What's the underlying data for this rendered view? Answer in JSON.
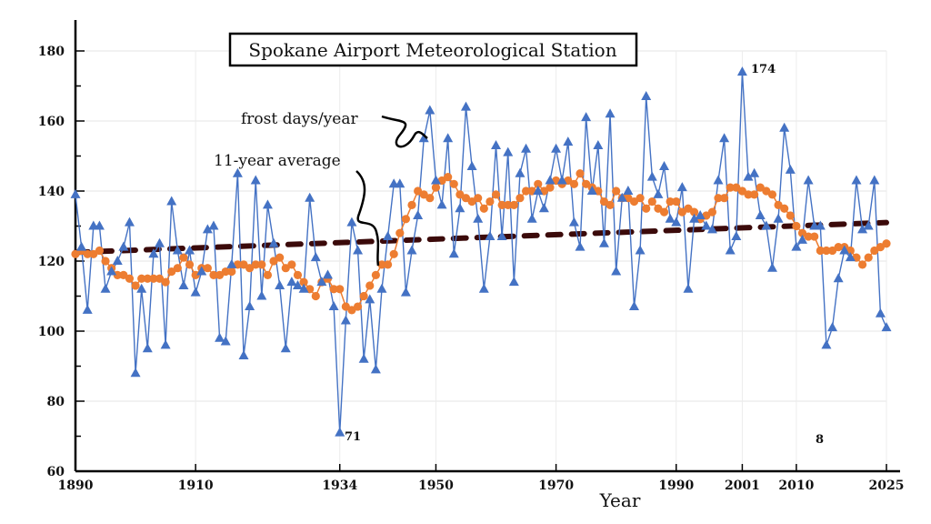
{
  "chart_data": {
    "type": "line",
    "title": "Spokane Airport Meteorological Station",
    "xlabel": "Year",
    "ylabel": "",
    "xlim": [
      1890,
      2025
    ],
    "ylim": [
      60,
      180
    ],
    "x_ticks": [
      "1890",
      "1910",
      "1934",
      "1950",
      "1970",
      "1990",
      "2001",
      "2010",
      "2025"
    ],
    "y_ticks": [
      "60",
      "80",
      "100",
      "120",
      "140",
      "160",
      "180"
    ],
    "grid": "faint",
    "x_start": 1890,
    "series": [
      {
        "name": "frost days/year",
        "color": "#4472c4",
        "marker": "triangle",
        "values": [
          139,
          124,
          106,
          130,
          130,
          112,
          117,
          120,
          124,
          131,
          88,
          112,
          95,
          122,
          125,
          96,
          137,
          123,
          113,
          123,
          111,
          117,
          129,
          130,
          98,
          97,
          119,
          145,
          93,
          107,
          143,
          110,
          136,
          125,
          113,
          95,
          114,
          113,
          112,
          138,
          121,
          114,
          116,
          107,
          71,
          103,
          131,
          123,
          92,
          109,
          89,
          112,
          127,
          142,
          142,
          111,
          123,
          133,
          155,
          163,
          143,
          136,
          155,
          122,
          135,
          164,
          147,
          132,
          112,
          127,
          153,
          127,
          151,
          114,
          145,
          152,
          132,
          140,
          135,
          143,
          152,
          143,
          154,
          131,
          124,
          161,
          140,
          153,
          125,
          162,
          117,
          138,
          140,
          107,
          123,
          167,
          144,
          139,
          147,
          132,
          131,
          141,
          112,
          132,
          133,
          130,
          129,
          143,
          155,
          123,
          127,
          174,
          144,
          145,
          133,
          130,
          118,
          132,
          158,
          146,
          124,
          126,
          143,
          130,
          130,
          96,
          101,
          115,
          123,
          121,
          143,
          129,
          130,
          143,
          105,
          101
        ]
      },
      {
        "name": "11-year average",
        "color": "#ed7d31",
        "marker": "circle",
        "values": [
          122,
          123,
          122,
          122,
          123,
          120,
          118,
          116,
          116,
          115,
          113,
          115,
          115,
          115,
          115,
          114,
          117,
          118,
          121,
          119,
          116,
          118,
          118,
          116,
          116,
          117,
          117,
          119,
          119,
          118,
          119,
          119,
          116,
          120,
          121,
          118,
          119,
          116,
          114,
          112,
          110,
          114,
          115,
          112,
          112,
          107,
          106,
          107,
          110,
          113,
          116,
          119,
          119,
          122,
          128,
          132,
          136,
          140,
          139,
          138,
          141,
          143,
          144,
          142,
          139,
          138,
          137,
          138,
          135,
          137,
          139,
          136,
          136,
          136,
          138,
          140,
          140,
          142,
          140,
          141,
          143,
          142,
          143,
          142,
          145,
          142,
          141,
          140,
          137,
          136,
          140,
          138,
          138,
          137,
          138,
          135,
          137,
          135,
          134,
          137,
          137,
          134,
          135,
          134,
          132,
          133,
          134,
          138,
          138,
          141,
          141,
          140,
          139,
          139,
          141,
          140,
          139,
          136,
          135,
          133,
          130,
          128,
          127,
          127,
          123,
          123,
          123,
          124,
          124,
          123,
          121,
          119,
          121,
          123,
          124,
          125
        ]
      },
      {
        "color": "#3b0a0a",
        "style": "dashed-trend",
        "values_at_ends": [
          122.5,
          131
        ]
      }
    ],
    "annotations": [
      "174",
      "71",
      "8"
    ]
  }
}
